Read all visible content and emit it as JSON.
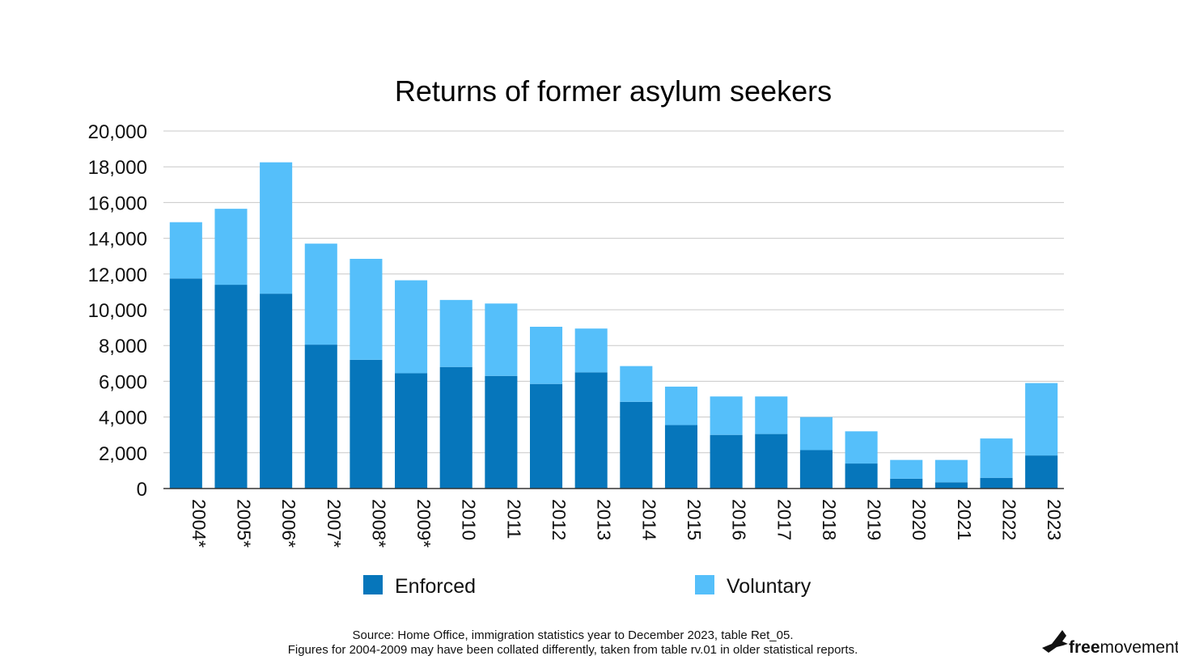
{
  "chart_data": {
    "type": "bar",
    "stacked": true,
    "title": "Returns of former asylum seekers",
    "xlabel": "",
    "ylabel": "",
    "ylim": [
      0,
      20000
    ],
    "yticks": [
      "0",
      "2,000",
      "4,000",
      "6,000",
      "8,000",
      "10,000",
      "12,000",
      "14,000",
      "16,000",
      "18,000",
      "20,000"
    ],
    "grid": true,
    "legend_position": "bottom",
    "categories": [
      "2004*",
      "2005*",
      "2006*",
      "2007*",
      "2008*",
      "2009*",
      "2010",
      "2011",
      "2012",
      "2013",
      "2014",
      "2015",
      "2016",
      "2017",
      "2018",
      "2019",
      "2020",
      "2021",
      "2022",
      "2023"
    ],
    "series": [
      {
        "name": "Enforced",
        "color": "#0676BB",
        "values": [
          11750,
          11400,
          10900,
          8050,
          7200,
          6450,
          6800,
          6300,
          5850,
          6500,
          4850,
          3550,
          3000,
          3050,
          2150,
          1400,
          550,
          350,
          600,
          1850
        ]
      },
      {
        "name": "Voluntary",
        "color": "#55BFFA",
        "values": [
          3150,
          4250,
          7350,
          5650,
          5650,
          5200,
          3750,
          4050,
          3200,
          2450,
          2000,
          2150,
          2150,
          2100,
          1850,
          1800,
          1050,
          1250,
          2200,
          4050
        ]
      }
    ]
  },
  "footer": {
    "source_line1": "Source: Home Office, immigration statistics year to December 2023, table Ret_05.",
    "source_line2": "Figures for 2004-2009 may have been collated differently, taken from table rv.01 in older statistical reports."
  },
  "brand": {
    "prefix": "free",
    "suffix": "movement",
    "icon": "bird-icon"
  }
}
